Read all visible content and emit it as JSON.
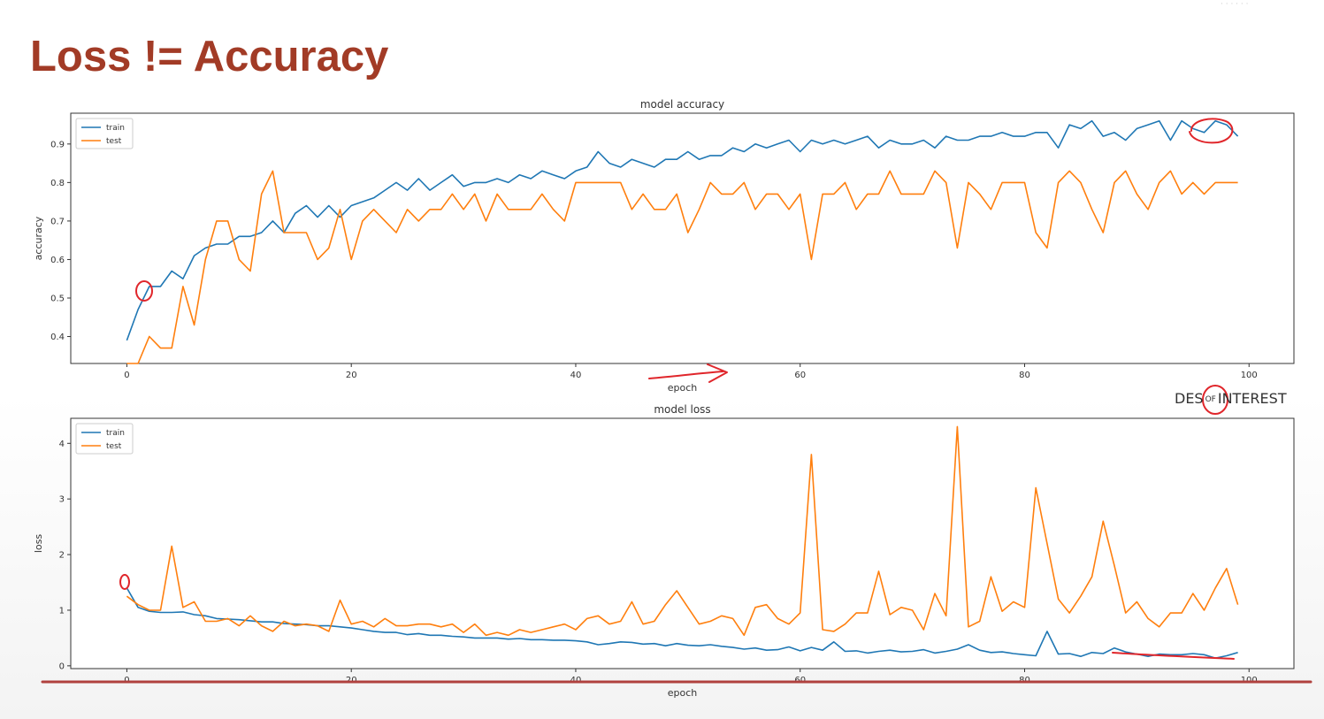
{
  "slide": {
    "title": "Loss != Accuracy",
    "brand_part1": "DES",
    "brand_of": "OF",
    "brand_part2": "INTEREST"
  },
  "colors": {
    "title": "#a23b26",
    "train": "#1f77b4",
    "test": "#ff7f0e",
    "annotation": "#e0262b",
    "underline": "#b0413e"
  },
  "chart_data": [
    {
      "type": "line",
      "title": "model accuracy",
      "xlabel": "epoch",
      "ylabel": "accuracy",
      "xlim": [
        -5,
        104
      ],
      "ylim": [
        0.33,
        0.98
      ],
      "xticks": [
        0,
        20,
        40,
        60,
        80,
        100
      ],
      "yticks": [
        0.4,
        0.5,
        0.6,
        0.7,
        0.8,
        0.9
      ],
      "legend": "top-left",
      "grid": false,
      "series": [
        {
          "name": "train",
          "x": [
            0,
            1,
            2,
            3,
            4,
            5,
            6,
            7,
            8,
            9,
            10,
            11,
            12,
            13,
            14,
            15,
            16,
            17,
            18,
            19,
            20,
            21,
            22,
            23,
            24,
            25,
            26,
            27,
            28,
            29,
            30,
            31,
            32,
            33,
            34,
            35,
            36,
            37,
            38,
            39,
            40,
            41,
            42,
            43,
            44,
            45,
            46,
            47,
            48,
            49,
            50,
            51,
            52,
            53,
            54,
            55,
            56,
            57,
            58,
            59,
            60,
            61,
            62,
            63,
            64,
            65,
            66,
            67,
            68,
            69,
            70,
            71,
            72,
            73,
            74,
            75,
            76,
            77,
            78,
            79,
            80,
            81,
            82,
            83,
            84,
            85,
            86,
            87,
            88,
            89,
            90,
            91,
            92,
            93,
            94,
            95,
            96,
            97,
            98,
            99
          ],
          "values": [
            0.39,
            0.47,
            0.53,
            0.53,
            0.57,
            0.55,
            0.61,
            0.63,
            0.64,
            0.64,
            0.66,
            0.66,
            0.67,
            0.7,
            0.67,
            0.72,
            0.74,
            0.71,
            0.74,
            0.71,
            0.74,
            0.75,
            0.76,
            0.78,
            0.8,
            0.78,
            0.81,
            0.78,
            0.8,
            0.82,
            0.79,
            0.8,
            0.8,
            0.81,
            0.8,
            0.82,
            0.81,
            0.83,
            0.82,
            0.81,
            0.83,
            0.84,
            0.88,
            0.85,
            0.84,
            0.86,
            0.85,
            0.84,
            0.86,
            0.86,
            0.88,
            0.86,
            0.87,
            0.87,
            0.89,
            0.88,
            0.9,
            0.89,
            0.9,
            0.91,
            0.88,
            0.91,
            0.9,
            0.91,
            0.9,
            0.91,
            0.92,
            0.89,
            0.91,
            0.9,
            0.9,
            0.91,
            0.89,
            0.92,
            0.91,
            0.91,
            0.92,
            0.92,
            0.93,
            0.92,
            0.92,
            0.93,
            0.93,
            0.89,
            0.95,
            0.94,
            0.96,
            0.92,
            0.93,
            0.91,
            0.94,
            0.95,
            0.96,
            0.91,
            0.96,
            0.94,
            0.93,
            0.96,
            0.95,
            0.92
          ]
        },
        {
          "name": "test",
          "x": [
            0,
            1,
            2,
            3,
            4,
            5,
            6,
            7,
            8,
            9,
            10,
            11,
            12,
            13,
            14,
            15,
            16,
            17,
            18,
            19,
            20,
            21,
            22,
            23,
            24,
            25,
            26,
            27,
            28,
            29,
            30,
            31,
            32,
            33,
            34,
            35,
            36,
            37,
            38,
            39,
            40,
            41,
            42,
            43,
            44,
            45,
            46,
            47,
            48,
            49,
            50,
            51,
            52,
            53,
            54,
            55,
            56,
            57,
            58,
            59,
            60,
            61,
            62,
            63,
            64,
            65,
            66,
            67,
            68,
            69,
            70,
            71,
            72,
            73,
            74,
            75,
            76,
            77,
            78,
            79,
            80,
            81,
            82,
            83,
            84,
            85,
            86,
            87,
            88,
            89,
            90,
            91,
            92,
            93,
            94,
            95,
            96,
            97,
            98,
            99
          ],
          "values": [
            0.33,
            0.33,
            0.4,
            0.37,
            0.37,
            0.53,
            0.43,
            0.6,
            0.7,
            0.7,
            0.6,
            0.57,
            0.77,
            0.83,
            0.67,
            0.67,
            0.67,
            0.6,
            0.63,
            0.73,
            0.6,
            0.7,
            0.73,
            0.7,
            0.67,
            0.73,
            0.7,
            0.73,
            0.73,
            0.77,
            0.73,
            0.77,
            0.7,
            0.77,
            0.73,
            0.73,
            0.73,
            0.77,
            0.73,
            0.7,
            0.8,
            0.8,
            0.8,
            0.8,
            0.8,
            0.73,
            0.77,
            0.73,
            0.73,
            0.77,
            0.67,
            0.73,
            0.8,
            0.77,
            0.77,
            0.8,
            0.73,
            0.77,
            0.77,
            0.73,
            0.77,
            0.6,
            0.77,
            0.77,
            0.8,
            0.73,
            0.77,
            0.77,
            0.83,
            0.77,
            0.77,
            0.77,
            0.83,
            0.8,
            0.63,
            0.8,
            0.77,
            0.73,
            0.8,
            0.8,
            0.8,
            0.67,
            0.63,
            0.8,
            0.83,
            0.8,
            0.73,
            0.67,
            0.8,
            0.83,
            0.77,
            0.73,
            0.8,
            0.83,
            0.77,
            0.8,
            0.77,
            0.8,
            0.8,
            0.8
          ]
        }
      ]
    },
    {
      "type": "line",
      "title": "model loss",
      "xlabel": "epoch",
      "ylabel": "loss",
      "xlim": [
        -5,
        104
      ],
      "ylim": [
        -0.05,
        4.45
      ],
      "xticks": [
        0,
        20,
        40,
        60,
        80,
        100
      ],
      "yticks": [
        0,
        1,
        2,
        3,
        4
      ],
      "legend": "top-left",
      "grid": false,
      "series": [
        {
          "name": "train",
          "x": [
            0,
            1,
            2,
            3,
            4,
            5,
            6,
            7,
            8,
            9,
            10,
            11,
            12,
            13,
            14,
            15,
            16,
            17,
            18,
            19,
            20,
            21,
            22,
            23,
            24,
            25,
            26,
            27,
            28,
            29,
            30,
            31,
            32,
            33,
            34,
            35,
            36,
            37,
            38,
            39,
            40,
            41,
            42,
            43,
            44,
            45,
            46,
            47,
            48,
            49,
            50,
            51,
            52,
            53,
            54,
            55,
            56,
            57,
            58,
            59,
            60,
            61,
            62,
            63,
            64,
            65,
            66,
            67,
            68,
            69,
            70,
            71,
            72,
            73,
            74,
            75,
            76,
            77,
            78,
            79,
            80,
            81,
            82,
            83,
            84,
            85,
            86,
            87,
            88,
            89,
            90,
            91,
            92,
            93,
            94,
            95,
            96,
            97,
            98,
            99
          ],
          "values": [
            1.4,
            1.05,
            0.98,
            0.96,
            0.96,
            0.97,
            0.92,
            0.9,
            0.85,
            0.84,
            0.83,
            0.81,
            0.79,
            0.79,
            0.76,
            0.75,
            0.74,
            0.72,
            0.72,
            0.7,
            0.68,
            0.65,
            0.62,
            0.6,
            0.6,
            0.56,
            0.58,
            0.55,
            0.55,
            0.53,
            0.52,
            0.5,
            0.5,
            0.5,
            0.48,
            0.49,
            0.47,
            0.47,
            0.46,
            0.46,
            0.45,
            0.43,
            0.38,
            0.4,
            0.43,
            0.42,
            0.39,
            0.4,
            0.36,
            0.4,
            0.37,
            0.36,
            0.38,
            0.35,
            0.33,
            0.3,
            0.32,
            0.28,
            0.29,
            0.34,
            0.27,
            0.33,
            0.28,
            0.43,
            0.26,
            0.27,
            0.23,
            0.26,
            0.28,
            0.25,
            0.26,
            0.29,
            0.23,
            0.26,
            0.3,
            0.38,
            0.28,
            0.24,
            0.25,
            0.22,
            0.2,
            0.18,
            0.62,
            0.21,
            0.22,
            0.17,
            0.24,
            0.22,
            0.32,
            0.25,
            0.21,
            0.17,
            0.21,
            0.2,
            0.2,
            0.22,
            0.2,
            0.14,
            0.18,
            0.24
          ]
        },
        {
          "name": "test",
          "x": [
            0,
            1,
            2,
            3,
            4,
            5,
            6,
            7,
            8,
            9,
            10,
            11,
            12,
            13,
            14,
            15,
            16,
            17,
            18,
            19,
            20,
            21,
            22,
            23,
            24,
            25,
            26,
            27,
            28,
            29,
            30,
            31,
            32,
            33,
            34,
            35,
            36,
            37,
            38,
            39,
            40,
            41,
            42,
            43,
            44,
            45,
            46,
            47,
            48,
            49,
            50,
            51,
            52,
            53,
            54,
            55,
            56,
            57,
            58,
            59,
            60,
            61,
            62,
            63,
            64,
            65,
            66,
            67,
            68,
            69,
            70,
            71,
            72,
            73,
            74,
            75,
            76,
            77,
            78,
            79,
            80,
            81,
            82,
            83,
            84,
            85,
            86,
            87,
            88,
            89,
            90,
            91,
            92,
            93,
            94,
            95,
            96,
            97,
            98,
            99
          ],
          "values": [
            1.25,
            1.1,
            1.0,
            1.0,
            2.15,
            1.05,
            1.15,
            0.8,
            0.8,
            0.85,
            0.72,
            0.9,
            0.72,
            0.62,
            0.8,
            0.72,
            0.75,
            0.72,
            0.62,
            1.18,
            0.75,
            0.8,
            0.7,
            0.85,
            0.72,
            0.72,
            0.75,
            0.75,
            0.7,
            0.75,
            0.6,
            0.75,
            0.55,
            0.6,
            0.55,
            0.65,
            0.6,
            0.65,
            0.7,
            0.75,
            0.65,
            0.85,
            0.9,
            0.75,
            0.8,
            1.15,
            0.75,
            0.8,
            1.1,
            1.35,
            1.05,
            0.75,
            0.8,
            0.9,
            0.85,
            0.55,
            1.05,
            1.1,
            0.85,
            0.75,
            0.95,
            3.8,
            0.65,
            0.62,
            0.75,
            0.95,
            0.95,
            1.7,
            0.92,
            1.05,
            1.0,
            0.65,
            1.3,
            0.9,
            4.3,
            0.7,
            0.8,
            1.6,
            0.98,
            1.15,
            1.05,
            3.2,
            2.2,
            1.2,
            0.95,
            1.25,
            1.6,
            2.6,
            1.8,
            0.95,
            1.15,
            0.85,
            0.7,
            0.95,
            0.95,
            1.3,
            1.0,
            1.4,
            1.75,
            1.1
          ]
        }
      ]
    }
  ]
}
